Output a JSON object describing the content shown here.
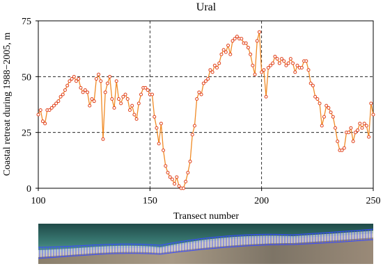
{
  "chart_data": {
    "type": "line",
    "title": "Ural",
    "xlabel": "Transect number",
    "ylabel": "Coastal retreat during 1988−2005, m",
    "x": [
      100,
      101,
      102,
      103,
      104,
      105,
      106,
      107,
      108,
      109,
      110,
      111,
      112,
      113,
      114,
      115,
      116,
      117,
      118,
      119,
      120,
      121,
      122,
      123,
      124,
      125,
      126,
      127,
      128,
      129,
      130,
      131,
      132,
      133,
      134,
      135,
      136,
      137,
      138,
      139,
      140,
      141,
      142,
      143,
      144,
      145,
      146,
      147,
      148,
      149,
      150,
      151,
      152,
      153,
      154,
      155,
      156,
      157,
      158,
      159,
      160,
      161,
      162,
      163,
      164,
      165,
      166,
      167,
      168,
      169,
      170,
      171,
      172,
      173,
      174,
      175,
      176,
      177,
      178,
      179,
      180,
      181,
      182,
      183,
      184,
      185,
      186,
      187,
      188,
      189,
      190,
      191,
      192,
      193,
      194,
      195,
      196,
      197,
      198,
      199,
      200,
      201,
      202,
      203,
      204,
      205,
      206,
      207,
      208,
      209,
      210,
      211,
      212,
      213,
      214,
      215,
      216,
      217,
      218,
      219,
      220,
      221,
      222,
      223,
      224,
      225,
      226,
      227,
      228,
      229,
      230,
      231,
      232,
      233,
      234,
      235,
      236,
      237,
      238,
      239,
      240,
      241,
      242,
      243,
      244,
      245,
      246,
      247,
      248,
      249,
      250
    ],
    "values": [
      33,
      35,
      30,
      29,
      35,
      35,
      36,
      37,
      38,
      39,
      41,
      42,
      44,
      46,
      48,
      49,
      50,
      48,
      49,
      45,
      43,
      44,
      43,
      37,
      40,
      39,
      49,
      51,
      48,
      22,
      43,
      47,
      50,
      40,
      36,
      48,
      40,
      38,
      41,
      42,
      40,
      35,
      37,
      33,
      31,
      38,
      42,
      45,
      45,
      44,
      42,
      42,
      32,
      27,
      20,
      29,
      17,
      10,
      7,
      5,
      4,
      2,
      5,
      1,
      0,
      0,
      3,
      7,
      12,
      24,
      28,
      40,
      43,
      42,
      47,
      48,
      49,
      53,
      52,
      55,
      54,
      56,
      60,
      62,
      61,
      64,
      60,
      66,
      67,
      68,
      67,
      67,
      65,
      65,
      63,
      60,
      55,
      51,
      66,
      70,
      52,
      53,
      41,
      54,
      55,
      56,
      59,
      58,
      56,
      58,
      57,
      55,
      56,
      58,
      56,
      52,
      55,
      54,
      54,
      57,
      57,
      53,
      47,
      46,
      41,
      40,
      38,
      28,
      32,
      37,
      36,
      34,
      32,
      27,
      21,
      17,
      17,
      18,
      25,
      25,
      27,
      21,
      25,
      26,
      29,
      27,
      29,
      28,
      23,
      38,
      33
    ],
    "color": "#f08a24",
    "marker_color": "#e0401a",
    "xlim": [
      100,
      250
    ],
    "ylim": [
      0,
      75
    ],
    "xticks": [
      100,
      150,
      200,
      250
    ],
    "yticks": [
      0,
      25,
      50,
      75
    ],
    "grid": true
  }
}
